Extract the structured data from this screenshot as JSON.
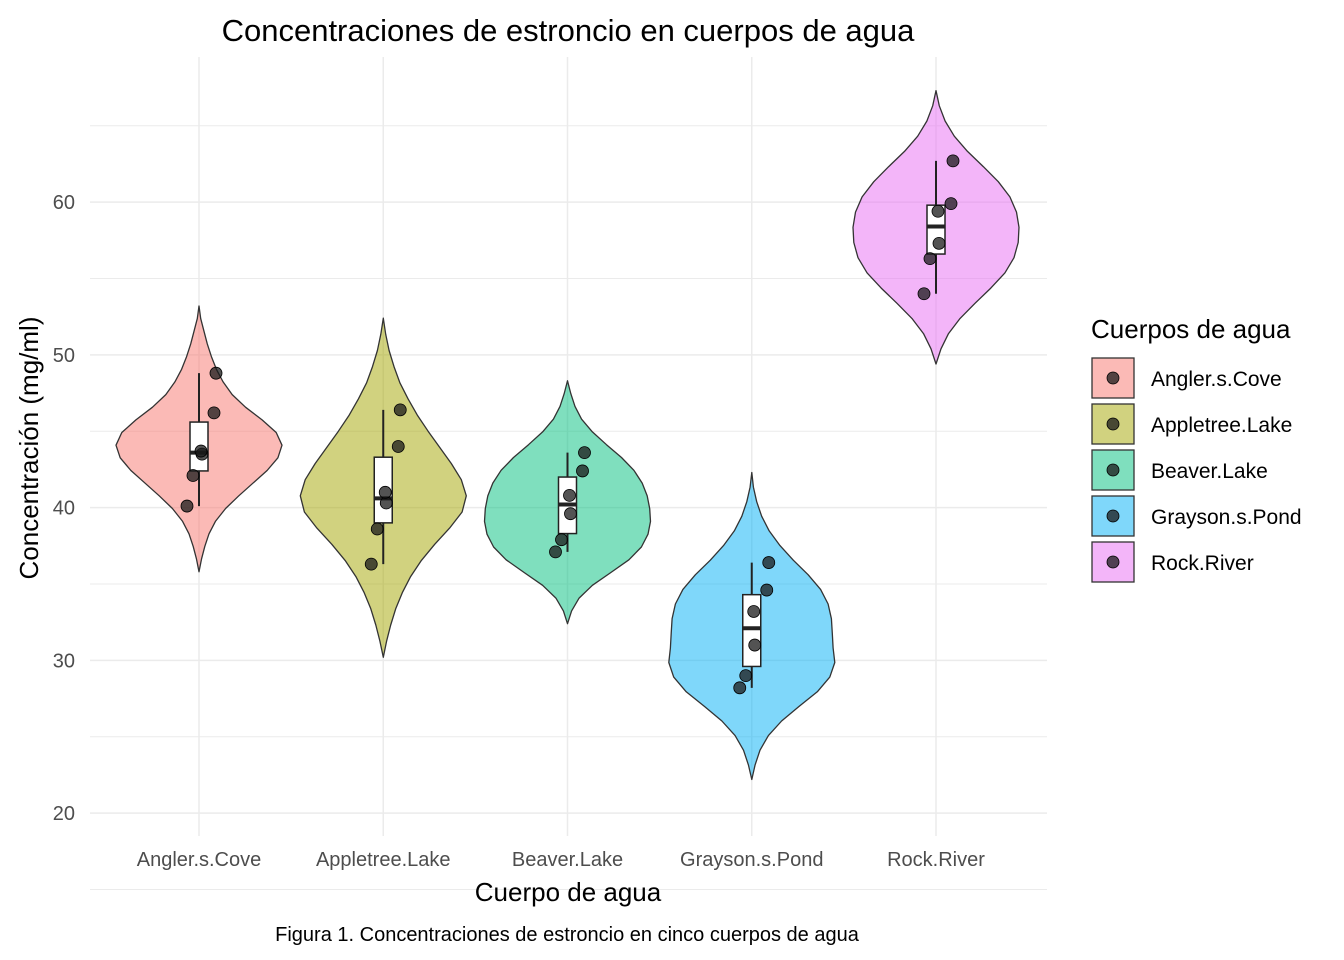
{
  "chart_data": {
    "type": "violin",
    "title": "Concentraciones de estroncio en cuerpos de agua",
    "xlabel": "Cuerpo de agua",
    "ylabel": "Concentración (mg/ml)",
    "caption": "Figura 1. Concentraciones de estroncio en cinco cuerpos de agua",
    "legend_title": "Cuerpos de agua",
    "legend_position": "right",
    "ylim": [
      18.5,
      69.5
    ],
    "y_ticks": [
      20,
      30,
      40,
      50,
      60
    ],
    "grid": true,
    "categories": [
      "Angler.s.Cove",
      "Appletree.Lake",
      "Beaver.Lake",
      "Grayson.s.Pond",
      "Rock.River"
    ],
    "colors": [
      "#F8766D",
      "#A3A500",
      "#00BF7D",
      "#00B0F6",
      "#E76BF3"
    ],
    "series": [
      {
        "name": "Angler.s.Cove",
        "points": [
          40.1,
          42.1,
          43.5,
          43.7,
          46.2,
          48.8
        ],
        "box": {
          "min": 40.1,
          "q1": 42.4,
          "median": 43.6,
          "q3": 45.6,
          "max": 48.8
        },
        "violin_range": [
          35.8,
          53.2
        ],
        "density": [
          0,
          0.03,
          0.07,
          0.12,
          0.2,
          0.32,
          0.48,
          0.65,
          0.82,
          0.95,
          1.0,
          0.93,
          0.76,
          0.56,
          0.4,
          0.29,
          0.21,
          0.15,
          0.1,
          0.06,
          0.02,
          0
        ]
      },
      {
        "name": "Appletree.Lake",
        "points": [
          36.3,
          38.6,
          40.3,
          41.0,
          44.0,
          46.4
        ],
        "box": {
          "min": 36.3,
          "q1": 39.0,
          "median": 40.6,
          "q3": 43.3,
          "max": 46.4
        },
        "violin_range": [
          30.2,
          52.4
        ],
        "density": [
          0,
          0.04,
          0.09,
          0.15,
          0.23,
          0.33,
          0.46,
          0.62,
          0.8,
          0.95,
          1.0,
          0.94,
          0.82,
          0.68,
          0.54,
          0.41,
          0.3,
          0.2,
          0.13,
          0.07,
          0.03,
          0
        ]
      },
      {
        "name": "Beaver.Lake",
        "points": [
          37.1,
          37.9,
          39.6,
          40.8,
          42.4,
          43.6
        ],
        "box": {
          "min": 37.1,
          "q1": 38.3,
          "median": 40.2,
          "q3": 42.0,
          "max": 43.6
        },
        "violin_range": [
          32.4,
          48.3
        ],
        "density": [
          0,
          0.05,
          0.14,
          0.3,
          0.52,
          0.74,
          0.89,
          0.97,
          1.0,
          0.99,
          0.96,
          0.9,
          0.8,
          0.65,
          0.47,
          0.3,
          0.17,
          0.09,
          0.04,
          0
        ]
      },
      {
        "name": "Grayson.s.Pond",
        "points": [
          28.2,
          29.0,
          31.0,
          33.2,
          34.6,
          36.4
        ],
        "box": {
          "min": 28.2,
          "q1": 29.6,
          "median": 32.1,
          "q3": 34.3,
          "max": 36.4
        },
        "violin_range": [
          22.2,
          42.3
        ],
        "density": [
          0,
          0.04,
          0.1,
          0.2,
          0.36,
          0.57,
          0.79,
          0.94,
          1.0,
          0.98,
          0.97,
          0.96,
          0.92,
          0.83,
          0.68,
          0.5,
          0.34,
          0.21,
          0.12,
          0.06,
          0.02,
          0
        ]
      },
      {
        "name": "Rock.River",
        "points": [
          54.0,
          56.3,
          57.3,
          59.4,
          59.9,
          62.7
        ],
        "box": {
          "min": 54.0,
          "q1": 56.6,
          "median": 58.4,
          "q3": 59.8,
          "max": 62.7
        },
        "violin_range": [
          49.4,
          67.3
        ],
        "density": [
          0,
          0.06,
          0.15,
          0.29,
          0.47,
          0.66,
          0.83,
          0.94,
          0.99,
          1.0,
          0.97,
          0.89,
          0.75,
          0.57,
          0.38,
          0.22,
          0.11,
          0.04,
          0
        ]
      }
    ]
  }
}
